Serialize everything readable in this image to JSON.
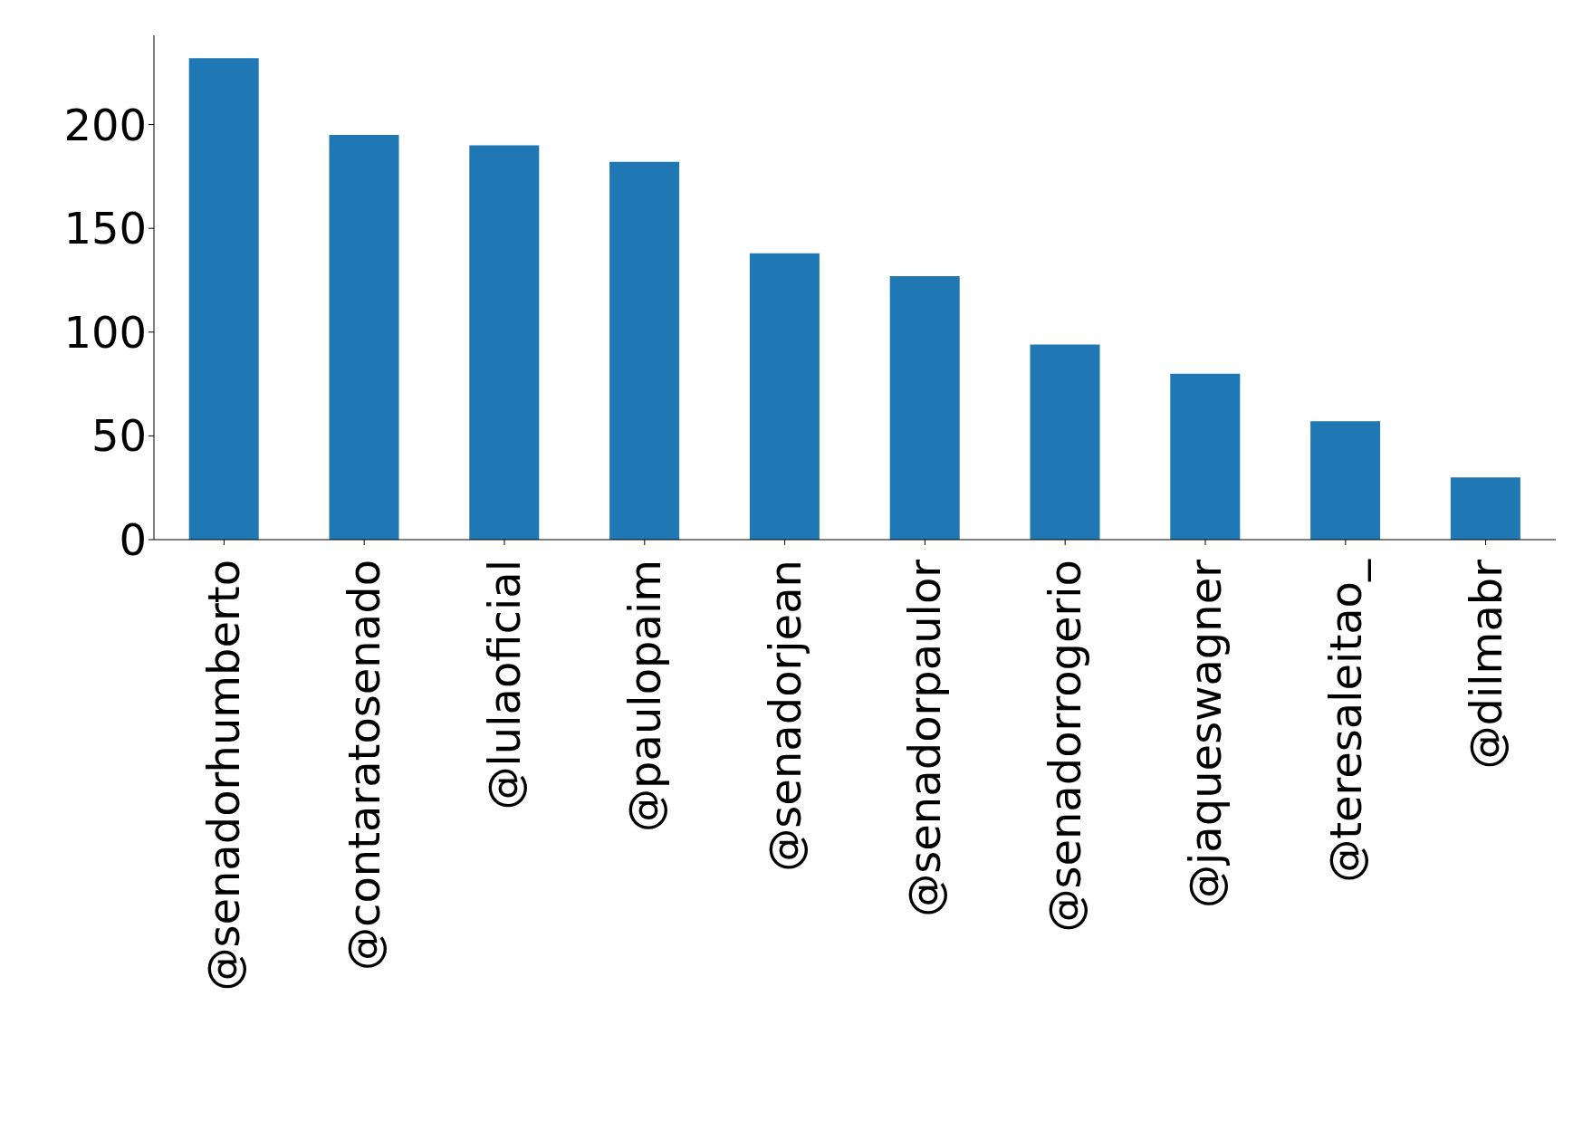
{
  "chart_data": {
    "type": "bar",
    "categories": [
      "@senadorhumberto",
      "@contaratosenado",
      "@lulaoficial",
      "@paulopaim",
      "@senadorjean",
      "@senadorpaulor",
      "@senadorrogerio",
      "@jaqueswagner",
      "@teresaleitao_",
      "@dilmabr"
    ],
    "values": [
      232,
      195,
      190,
      182,
      138,
      127,
      94,
      80,
      57,
      30
    ],
    "color": "#1f77b4",
    "ylim": [
      0,
      243
    ],
    "yticks": [
      0,
      50,
      100,
      150,
      200
    ],
    "grid": false,
    "legend": false
  }
}
